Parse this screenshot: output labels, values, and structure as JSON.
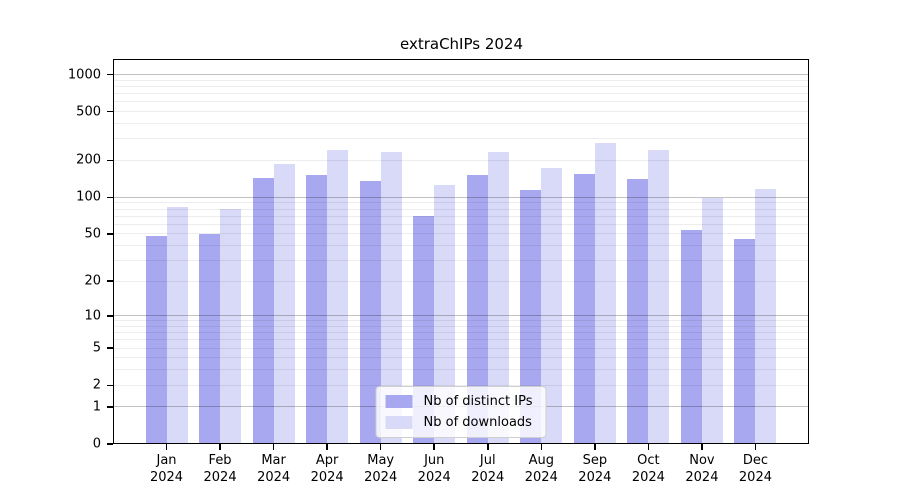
{
  "title": "extraChIPs 2024",
  "legend": {
    "items": [
      {
        "label": "Nb of distinct IPs"
      },
      {
        "label": "Nb of downloads"
      }
    ]
  },
  "chart_data": {
    "type": "bar",
    "title": "extraChIPs 2024",
    "categories": [
      "Jan 2024",
      "Feb 2024",
      "Mar 2024",
      "Apr 2024",
      "May 2024",
      "Jun 2024",
      "Jul 2024",
      "Aug 2024",
      "Sep 2024",
      "Oct 2024",
      "Nov 2024",
      "Dec 2024"
    ],
    "series": [
      {
        "name": "Nb of distinct IPs",
        "color": "#a8a8f0",
        "values": [
          48,
          50,
          145,
          152,
          137,
          70,
          151,
          115,
          154,
          140,
          54,
          45
        ]
      },
      {
        "name": "Nb of downloads",
        "color": "#d9d9f8",
        "values": [
          83,
          80,
          187,
          243,
          233,
          126,
          236,
          175,
          279,
          245,
          98,
          117
        ]
      }
    ],
    "yscale": "log(1+x)",
    "ylim": [
      0,
      1320
    ],
    "yticks": [
      0,
      1,
      2,
      5,
      10,
      20,
      50,
      100,
      200,
      500,
      1000
    ],
    "major_gridlines": [
      1,
      10,
      100,
      1000
    ],
    "grid": true,
    "legend_position": "bottom-center"
  }
}
